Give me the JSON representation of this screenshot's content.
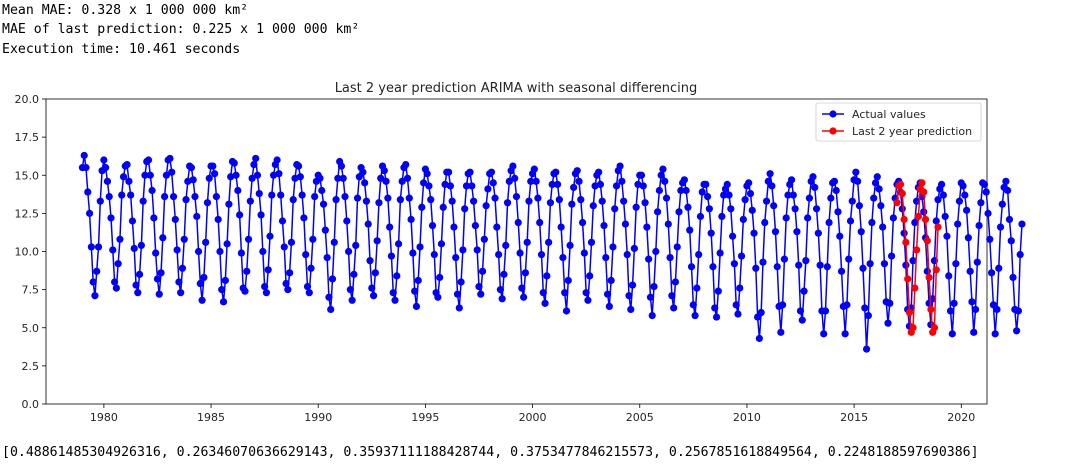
{
  "output": {
    "line1": "Mean MAE: 0.328 x 1 000 000 km²",
    "line2": "MAE of last prediction: 0.225 x 1 000 000 km²",
    "line3": "Execution time: 10.461 seconds",
    "line4": "[0.48861485304926316, 0.26346070636629143, 0.35937111188428744, 0.3753477846215573, 0.2567851618849564, 0.2248188597690386]"
  },
  "chart_data": {
    "type": "line",
    "title": "Last 2 year prediction ARIMA with seasonal differencing",
    "xlabel": "",
    "ylabel": "",
    "xlim": [
      1977.3,
      2021.2
    ],
    "ylim": [
      0.0,
      20.0
    ],
    "xticks": [
      1980,
      1985,
      1990,
      1995,
      2000,
      2005,
      2010,
      2015,
      2020
    ],
    "yticks": [
      0.0,
      2.5,
      5.0,
      7.5,
      10.0,
      12.5,
      15.0,
      17.5,
      20.0
    ],
    "legend_position": "top-right",
    "grid": false,
    "x_start": 1979.0,
    "x_step_years": 0.08333,
    "series": [
      {
        "name": "Actual values",
        "color": "#0000ff",
        "marker": "circle",
        "values": [
          15.5,
          16.3,
          15.5,
          13.9,
          12.5,
          10.3,
          8.0,
          7.1,
          8.7,
          10.3,
          13.3,
          15.3,
          16.0,
          15.5,
          14.6,
          13.6,
          12.2,
          10.1,
          8.0,
          7.6,
          9.2,
          10.8,
          13.7,
          14.9,
          15.6,
          15.7,
          14.6,
          13.7,
          12.0,
          10.2,
          7.8,
          7.3,
          8.5,
          10.4,
          13.3,
          15.0,
          15.9,
          16.0,
          15.0,
          14.0,
          12.2,
          9.9,
          8.2,
          7.2,
          8.6,
          10.9,
          13.6,
          15.0,
          16.0,
          16.1,
          15.2,
          13.6,
          12.1,
          10.1,
          8.0,
          7.3,
          8.9,
          10.8,
          13.4,
          14.6,
          15.6,
          15.5,
          14.7,
          13.6,
          12.3,
          10.0,
          7.9,
          6.8,
          8.3,
          10.6,
          13.2,
          14.8,
          15.6,
          15.6,
          15.1,
          13.6,
          12.1,
          10.0,
          7.5,
          6.7,
          8.1,
          10.5,
          13.1,
          14.9,
          15.9,
          15.8,
          15.0,
          14.0,
          12.4,
          9.9,
          7.6,
          7.4,
          8.7,
          10.8,
          13.3,
          14.8,
          15.7,
          16.1,
          15.0,
          13.8,
          12.4,
          10.0,
          7.7,
          7.3,
          8.8,
          11.0,
          13.7,
          15.0,
          15.7,
          16.0,
          15.1,
          13.7,
          12.0,
          10.3,
          7.9,
          7.5,
          8.6,
          10.6,
          13.4,
          14.8,
          15.7,
          15.6,
          14.9,
          13.7,
          12.2,
          9.8,
          7.7,
          7.3,
          8.9,
          10.8,
          13.6,
          14.6,
          15.0,
          14.8,
          14.0,
          13.1,
          11.4,
          9.6,
          7.0,
          6.2,
          8.2,
          10.6,
          13.4,
          14.8,
          15.9,
          15.6,
          14.8,
          13.6,
          12.0,
          10.0,
          7.5,
          6.8,
          8.5,
          10.4,
          13.5,
          14.9,
          15.5,
          15.2,
          14.5,
          13.3,
          11.8,
          9.4,
          7.6,
          7.1,
          8.6,
          10.7,
          13.2,
          14.8,
          15.6,
          15.3,
          14.6,
          13.5,
          11.6,
          9.7,
          7.3,
          6.8,
          8.4,
          10.5,
          13.4,
          14.6,
          15.5,
          15.7,
          14.8,
          13.5,
          12.1,
          9.9,
          7.4,
          6.4,
          8.1,
          10.3,
          12.9,
          14.5,
          15.4,
          15.1,
          14.3,
          13.4,
          11.7,
          9.8,
          7.3,
          7.0,
          8.3,
          10.5,
          12.9,
          14.4,
          15.2,
          15.2,
          14.3,
          13.3,
          11.6,
          9.6,
          7.2,
          6.3,
          8.0,
          10.1,
          12.8,
          14.3,
          15.1,
          15.2,
          14.3,
          13.3,
          11.7,
          10.1,
          7.7,
          7.2,
          8.7,
          10.8,
          13.0,
          14.1,
          15.1,
          15.2,
          14.5,
          13.5,
          11.6,
          9.8,
          7.5,
          6.9,
          8.5,
          10.4,
          13.2,
          14.6,
          15.3,
          15.6,
          14.8,
          13.6,
          11.9,
          9.9,
          7.6,
          7.0,
          8.6,
          10.6,
          13.3,
          14.6,
          15.1,
          15.4,
          14.6,
          13.5,
          11.9,
          9.8,
          7.3,
          6.6,
          8.4,
          10.6,
          13.2,
          14.4,
          15.1,
          15.2,
          14.4,
          13.4,
          11.6,
          9.6,
          7.3,
          6.1,
          8.1,
          10.4,
          13.1,
          14.2,
          15.1,
          15.3,
          14.6,
          13.4,
          11.9,
          9.9,
          7.3,
          6.8,
          8.4,
          10.6,
          13.0,
          14.3,
          15.0,
          15.2,
          14.4,
          13.3,
          11.7,
          9.6,
          7.2,
          6.4,
          8.1,
          10.3,
          12.8,
          14.3,
          15.3,
          15.6,
          14.6,
          13.3,
          11.8,
          9.8,
          7.1,
          6.2,
          7.8,
          10.2,
          12.9,
          14.4,
          15.0,
          15.0,
          14.3,
          13.2,
          11.6,
          9.5,
          7.0,
          5.8,
          7.7,
          10.0,
          12.6,
          14.0,
          15.0,
          15.4,
          14.6,
          13.5,
          11.8,
          9.6,
          7.1,
          6.3,
          8.0,
          10.3,
          12.6,
          14.0,
          14.5,
          14.7,
          14.0,
          12.9,
          11.4,
          9.0,
          6.5,
          5.8,
          7.6,
          9.8,
          12.3,
          13.9,
          14.4,
          14.4,
          13.6,
          12.8,
          11.2,
          9.0,
          6.3,
          5.7,
          7.4,
          9.9,
          12.3,
          13.7,
          14.1,
          14.4,
          13.7,
          12.8,
          11.0,
          9.2,
          6.5,
          5.9,
          7.6,
          9.7,
          12.1,
          13.4,
          14.3,
          14.5,
          13.8,
          12.7,
          11.2,
          8.9,
          5.7,
          4.3,
          6.0,
          9.3,
          11.9,
          13.3,
          14.6,
          15.1,
          14.3,
          13.0,
          11.3,
          9.0,
          6.4,
          4.7,
          6.5,
          9.5,
          12.2,
          13.7,
          14.4,
          14.7,
          13.7,
          12.8,
          11.3,
          9.1,
          6.1,
          5.5,
          7.4,
          9.4,
          12.2,
          13.5,
          14.6,
          14.9,
          14.2,
          12.8,
          11.2,
          9.1,
          6.1,
          4.6,
          6.1,
          9.0,
          11.9,
          13.5,
          14.5,
          14.6,
          14.0,
          12.6,
          11.0,
          8.7,
          6.4,
          4.6,
          6.5,
          9.5,
          12.0,
          13.3,
          14.7,
          15.2,
          14.6,
          13.0,
          11.3,
          8.9,
          6.3,
          3.6,
          5.8,
          9.2,
          11.9,
          13.5,
          14.5,
          14.9,
          14.1,
          13.0,
          11.6,
          9.2,
          6.7,
          5.3,
          6.6,
          9.7,
          12.2,
          13.5,
          14.4,
          14.6,
          13.9,
          12.8,
          11.2,
          9.1,
          6.2,
          5.1,
          6.3,
          9.4,
          11.9,
          13.3,
          14.2,
          14.5,
          13.6,
          12.6,
          10.9,
          8.7,
          6.6,
          5.2,
          6.9,
          9.4,
          12.0,
          13.4,
          14.1,
          14.4,
          13.7,
          12.3,
          11.0,
          8.4,
          6.1,
          4.6,
          6.6,
          9.2,
          11.8,
          13.3,
          14.5,
          14.3,
          13.7,
          12.7,
          10.9,
          8.7,
          6.7,
          4.7,
          6.2,
          9.3,
          11.7,
          13.2,
          14.5,
          14.4,
          13.9,
          12.5,
          10.8,
          8.6,
          6.5,
          4.6,
          6.2,
          8.9,
          11.6,
          13.1,
          14.2,
          14.6,
          14.0,
          12.1,
          10.7,
          8.3,
          6.2,
          4.8,
          6.1,
          9.8,
          11.8
        ]
      },
      {
        "name": "Last 2 year prediction",
        "color": "#ff0000",
        "marker": "circle",
        "x_start": 2017.0,
        "values": [
          13.2,
          14.3,
          14.4,
          13.8,
          12.1,
          10.6,
          8.2,
          6.0,
          4.7,
          5.0,
          7.6,
          10.1,
          12.3,
          14.1,
          14.5,
          13.9,
          12.1,
          10.7,
          8.3,
          6.2,
          4.7,
          5.0,
          8.8,
          11.6
        ]
      }
    ]
  }
}
